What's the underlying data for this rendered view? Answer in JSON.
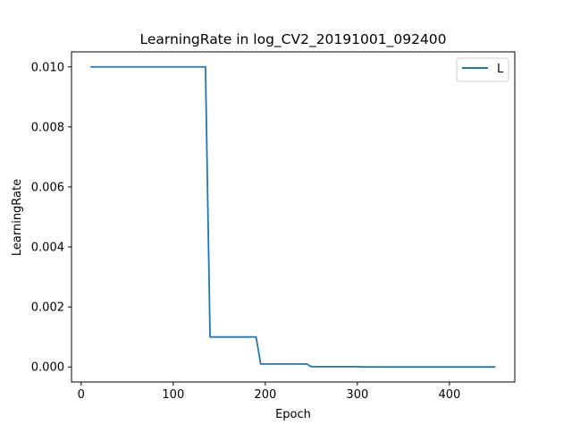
{
  "chart_data": {
    "type": "line",
    "title": "LearningRate in log_CV2_20191001_092400",
    "xlabel": "Epoch",
    "ylabel": "LearningRate",
    "xlim": [
      -10.5,
      471
    ],
    "ylim": [
      -0.0005,
      0.0105
    ],
    "xticks": [
      0,
      100,
      200,
      300,
      400
    ],
    "xtick_labels": [
      "0",
      "100",
      "200",
      "300",
      "400"
    ],
    "yticks": [
      0.0,
      0.002,
      0.004,
      0.006,
      0.008,
      0.01
    ],
    "ytick_labels": [
      "0.000",
      "0.002",
      "0.004",
      "0.006",
      "0.008",
      "0.010"
    ],
    "grid": false,
    "legend_position": "top-right",
    "series": [
      {
        "name": "L",
        "color": "#1f77b4",
        "x": [
          10,
          135,
          140,
          190,
          195,
          245,
          250,
          300,
          305,
          450
        ],
        "y": [
          0.01,
          0.01,
          0.001,
          0.001,
          0.0001,
          0.0001,
          1e-05,
          1e-05,
          1e-06,
          1e-06
        ]
      }
    ]
  }
}
